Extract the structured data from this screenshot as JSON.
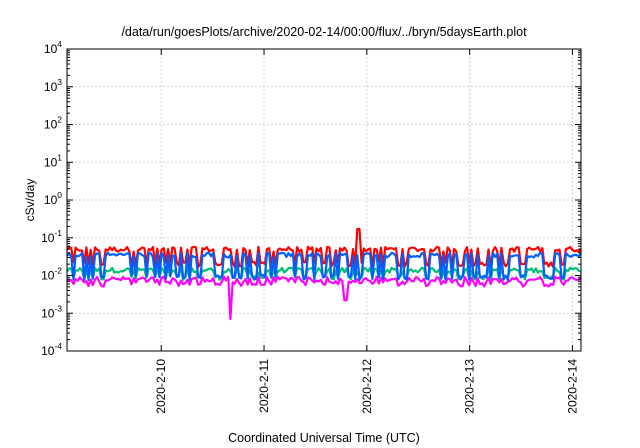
{
  "chart_data": {
    "type": "line",
    "title": "/data/run/goesPlots/archive/2020-02-14/00:00/flux/../bryn/5daysEarth.plot",
    "xlabel": "Coordinated Universal Time (UTC)",
    "ylabel": "cSv/day",
    "yscale": "log",
    "ylim": [
      0.0001,
      10000
    ],
    "xlim": [
      "2020-02-09T02:00",
      "2020-02-14T02:00"
    ],
    "x_ticks": [
      "2020-2-10",
      "2020-2-11",
      "2020-2-12",
      "2020-2-13",
      "2020-2-14"
    ],
    "y_ticks": [
      {
        "base": "10",
        "exp": "4"
      },
      {
        "base": "10",
        "exp": "3"
      },
      {
        "base": "10",
        "exp": "2"
      },
      {
        "base": "10",
        "exp": "1"
      },
      {
        "base": "10",
        "exp": "0"
      },
      {
        "base": "10",
        "exp": "-1"
      },
      {
        "base": "10",
        "exp": "-2"
      },
      {
        "base": "10",
        "exp": "-3"
      },
      {
        "base": "10",
        "exp": "-4"
      }
    ],
    "grid": true,
    "legend": "none",
    "series": [
      {
        "color": "#ff0000",
        "level_baseline": 0.05,
        "level_dip": 0.02
      },
      {
        "color": "#00c070",
        "level_baseline": 0.014,
        "level_dip": 0.009
      },
      {
        "color": "#ff00ff",
        "level_baseline": 0.008,
        "level_dip": 0.006
      },
      {
        "color": "#0060ff",
        "level_baseline": 0.035,
        "level_dip": 0.009
      }
    ],
    "notable_points": [
      {
        "x": "2020-02-10T16:00",
        "series": 2,
        "y": 0.0007
      },
      {
        "x": "2020-02-11T19:00",
        "series": 2,
        "y": 0.0022
      },
      {
        "x": "2020-02-11T22:00",
        "series": 0,
        "y": 0.17
      }
    ]
  }
}
